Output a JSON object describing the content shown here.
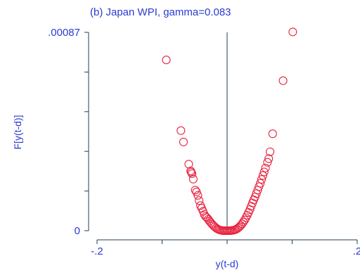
{
  "chart_data": {
    "type": "scatter",
    "title": "(b) Japan WPI, gamma=0.083",
    "xlabel": "y(t-d)",
    "ylabel": "F[y(t-d)]",
    "xlim": [
      -0.2,
      0.2
    ],
    "ylim": [
      0,
      0.00087
    ],
    "xticks": [
      -0.2,
      -0.1,
      0,
      0.1,
      0.2
    ],
    "xtick_labels": [
      "-.2",
      "",
      "",
      "",
      ".2"
    ],
    "yticks": [
      0,
      0.000174,
      0.000348,
      0.000522,
      0.000696,
      0.00087
    ],
    "ytick_labels": [
      "0",
      "",
      "",
      "",
      "",
      ".00087"
    ],
    "reference_line_x": 0,
    "marker": "hollow-circle",
    "marker_color": "#e8223f",
    "text_color": "#2a3bcf",
    "axis_color": "#1f3f57",
    "x": [
      -0.0935,
      -0.071,
      -0.067,
      -0.059,
      -0.056,
      -0.055,
      -0.054,
      -0.052,
      -0.049,
      -0.047,
      -0.045,
      -0.043,
      -0.041,
      -0.039,
      -0.037,
      -0.035,
      -0.033,
      -0.031,
      -0.029,
      -0.027,
      -0.025,
      -0.023,
      -0.021,
      -0.019,
      -0.017,
      -0.015,
      -0.013,
      -0.011,
      -0.009,
      -0.007,
      -0.005,
      -0.003,
      -0.001,
      0.001,
      0.003,
      0.005,
      0.007,
      0.009,
      0.011,
      0.013,
      0.015,
      0.017,
      0.019,
      0.021,
      0.023,
      0.025,
      0.027,
      0.029,
      0.031,
      0.033,
      0.035,
      0.037,
      0.039,
      0.041,
      0.043,
      0.045,
      0.047,
      0.049,
      0.051,
      0.053,
      0.055,
      0.057,
      0.059,
      0.062,
      0.064,
      0.066,
      0.07,
      0.086,
      0.101
    ],
    "y": [
      0.000749,
      0.000439,
      0.000389,
      0.000292,
      0.000262,
      0.000256,
      0.00025,
      0.000226,
      0.000178,
      0.00017,
      0.000155,
      0.000132,
      0.00011,
      9.85e-05,
      8.5e-05,
      7.1e-05,
      6.2e-05,
      5.7e-05,
      5e-05,
      4.2e-05,
      3.5e-05,
      2.8e-05,
      2.2e-05,
      1.7e-05,
      1.2e-05,
      8e-06,
      5e-06,
      3e-06,
      1.5e-06,
      7e-07,
      3e-07,
      1e-07,
      0.0,
      0.0,
      1e-07,
      4e-07,
      8e-07,
      1.6e-06,
      3e-06,
      5e-06,
      8e-06,
      1.2e-05,
      1.7e-05,
      2.3e-05,
      3e-05,
      3.8e-05,
      4.7e-05,
      5.7e-05,
      6.8e-05,
      8e-05,
      9.3e-05,
      0.000107,
      0.000122,
      0.000135,
      0.000148,
      0.000163,
      0.000178,
      0.000193,
      0.000208,
      0.000225,
      0.000242,
      0.000258,
      0.000275,
      0.0003,
      0.000316,
      0.000346,
      0.000425,
      0.000658,
      0.000872
    ]
  }
}
